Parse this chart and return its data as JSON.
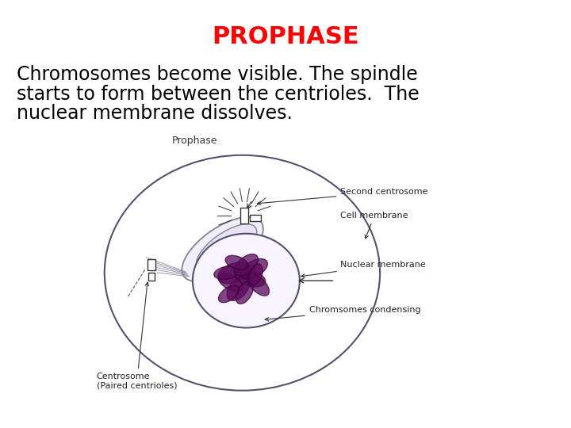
{
  "title": "PROPHASE",
  "title_color": "#ff0000",
  "title_fontsize": 22,
  "title_fontweight": "bold",
  "body_text_line1": "Chromosomes become visible. The spindle",
  "body_text_line2": "starts to form between the centrioles.  The",
  "body_text_line3": "nuclear membrane dissolves.",
  "body_fontsize": 17,
  "body_color": "#000000",
  "background_color": "#ffffff",
  "diagram_label": "Prophase",
  "label_second_centrosome": "Second centrosome",
  "label_cell_membrane": "Cell membrane",
  "label_nuclear_membrane": "Nuclear membrane",
  "label_chromosomes": "Chromsomes condensing",
  "label_centrosome": "Centrosome\n(Paired centrioles)",
  "cell_outline_color": "#555070",
  "spindle_outline_color": "#888099",
  "chromosome_fill": "#5a0a5a",
  "chromosome_edge": "#3a003a",
  "label_fontsize": 8
}
